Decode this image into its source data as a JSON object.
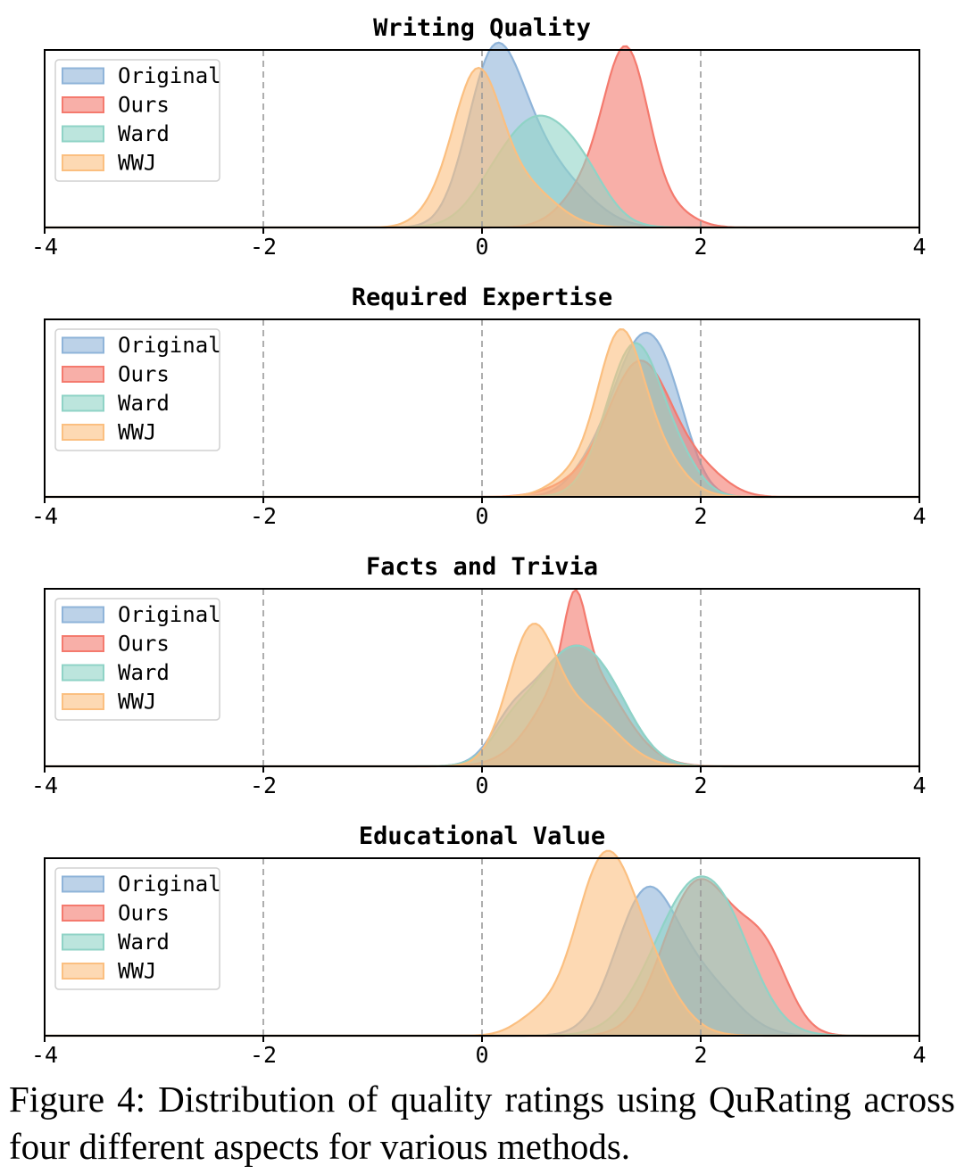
{
  "caption": "Figure 4: Distribution of quality ratings using QuRating across four different aspects for various methods.",
  "chart_data": {
    "type": "area",
    "series_names": [
      "Original",
      "Ours",
      "Ward",
      "WWJ"
    ],
    "colors": {
      "Original": "#8fb4d9",
      "Ours": "#f47a6e",
      "Ward": "#8fd3c6",
      "WWJ": "#fbbf80"
    },
    "xlim": [
      -4,
      4
    ],
    "xticks": [
      -4,
      -2,
      0,
      2,
      4
    ],
    "xtick_labels": [
      "-4",
      "-2",
      "0",
      "2",
      "4"
    ],
    "vlines": [
      -2,
      0,
      2
    ],
    "legend": "top-left",
    "panels": [
      {
        "title": "Writing Quality",
        "series": [
          {
            "name": "Original",
            "peaks": [
              {
                "mu": 0.05,
                "sd": 0.22,
                "h": 0.5
              },
              {
                "mu": 0.25,
                "sd": 0.28,
                "h": 0.62
              },
              {
                "mu": 0.75,
                "sd": 0.3,
                "h": 0.22
              }
            ]
          },
          {
            "name": "Ours",
            "peaks": [
              {
                "mu": 1.33,
                "sd": 0.2,
                "h": 0.93
              },
              {
                "mu": 1.0,
                "sd": 0.25,
                "h": 0.24
              },
              {
                "mu": 1.75,
                "sd": 0.2,
                "h": 0.08
              }
            ]
          },
          {
            "name": "Ward",
            "peaks": [
              {
                "mu": 0.5,
                "sd": 0.35,
                "h": 0.62
              },
              {
                "mu": 0.95,
                "sd": 0.22,
                "h": 0.14
              },
              {
                "mu": 0.05,
                "sd": 0.2,
                "h": 0.05
              }
            ]
          },
          {
            "name": "WWJ",
            "peaks": [
              {
                "mu": -0.05,
                "sd": 0.22,
                "h": 0.85
              },
              {
                "mu": 0.4,
                "sd": 0.28,
                "h": 0.22
              },
              {
                "mu": -0.45,
                "sd": 0.18,
                "h": 0.06
              }
            ]
          }
        ]
      },
      {
        "title": "Required Expertise",
        "series": [
          {
            "name": "Original",
            "peaks": [
              {
                "mu": 1.42,
                "sd": 0.22,
                "h": 0.72
              },
              {
                "mu": 1.72,
                "sd": 0.2,
                "h": 0.45
              },
              {
                "mu": 1.05,
                "sd": 0.22,
                "h": 0.2
              }
            ]
          },
          {
            "name": "Ours",
            "peaks": [
              {
                "mu": 1.45,
                "sd": 0.3,
                "h": 0.78
              },
              {
                "mu": 0.8,
                "sd": 0.25,
                "h": 0.05
              },
              {
                "mu": 2.05,
                "sd": 0.22,
                "h": 0.1
              }
            ]
          },
          {
            "name": "Ward",
            "peaks": [
              {
                "mu": 1.4,
                "sd": 0.26,
                "h": 0.88
              },
              {
                "mu": 1.85,
                "sd": 0.18,
                "h": 0.1
              }
            ]
          },
          {
            "name": "WWJ",
            "peaks": [
              {
                "mu": 1.25,
                "sd": 0.2,
                "h": 0.8
              },
              {
                "mu": 1.55,
                "sd": 0.25,
                "h": 0.28
              },
              {
                "mu": 0.85,
                "sd": 0.22,
                "h": 0.12
              }
            ]
          }
        ]
      },
      {
        "title": "Facts and Trivia",
        "series": [
          {
            "name": "Original",
            "peaks": [
              {
                "mu": 0.8,
                "sd": 0.35,
                "h": 0.64
              },
              {
                "mu": 1.2,
                "sd": 0.25,
                "h": 0.16
              },
              {
                "mu": 0.25,
                "sd": 0.18,
                "h": 0.16
              }
            ]
          },
          {
            "name": "Ours",
            "peaks": [
              {
                "mu": 0.85,
                "sd": 0.1,
                "h": 0.42
              },
              {
                "mu": 0.9,
                "sd": 0.35,
                "h": 0.6
              }
            ]
          },
          {
            "name": "Ward",
            "peaks": [
              {
                "mu": 0.8,
                "sd": 0.35,
                "h": 0.64
              },
              {
                "mu": 1.2,
                "sd": 0.25,
                "h": 0.16
              },
              {
                "mu": 0.25,
                "sd": 0.18,
                "h": 0.12
              }
            ]
          },
          {
            "name": "WWJ",
            "peaks": [
              {
                "mu": 0.45,
                "sd": 0.22,
                "h": 0.74
              },
              {
                "mu": 0.95,
                "sd": 0.3,
                "h": 0.3
              }
            ]
          }
        ]
      },
      {
        "title": "Educational Value",
        "series": [
          {
            "name": "Original",
            "peaks": [
              {
                "mu": 1.5,
                "sd": 0.28,
                "h": 0.8
              },
              {
                "mu": 2.05,
                "sd": 0.3,
                "h": 0.28
              }
            ]
          },
          {
            "name": "Ours",
            "peaks": [
              {
                "mu": 1.85,
                "sd": 0.28,
                "h": 0.5
              },
              {
                "mu": 2.15,
                "sd": 0.3,
                "h": 0.52
              },
              {
                "mu": 2.6,
                "sd": 0.22,
                "h": 0.38
              }
            ]
          },
          {
            "name": "Ward",
            "peaks": [
              {
                "mu": 1.95,
                "sd": 0.38,
                "h": 0.85
              },
              {
                "mu": 2.3,
                "sd": 0.25,
                "h": 0.15
              }
            ]
          },
          {
            "name": "WWJ",
            "peaks": [
              {
                "mu": 1.1,
                "sd": 0.26,
                "h": 0.92
              },
              {
                "mu": 1.5,
                "sd": 0.28,
                "h": 0.35
              },
              {
                "mu": 0.5,
                "sd": 0.2,
                "h": 0.1
              }
            ]
          }
        ]
      }
    ]
  }
}
